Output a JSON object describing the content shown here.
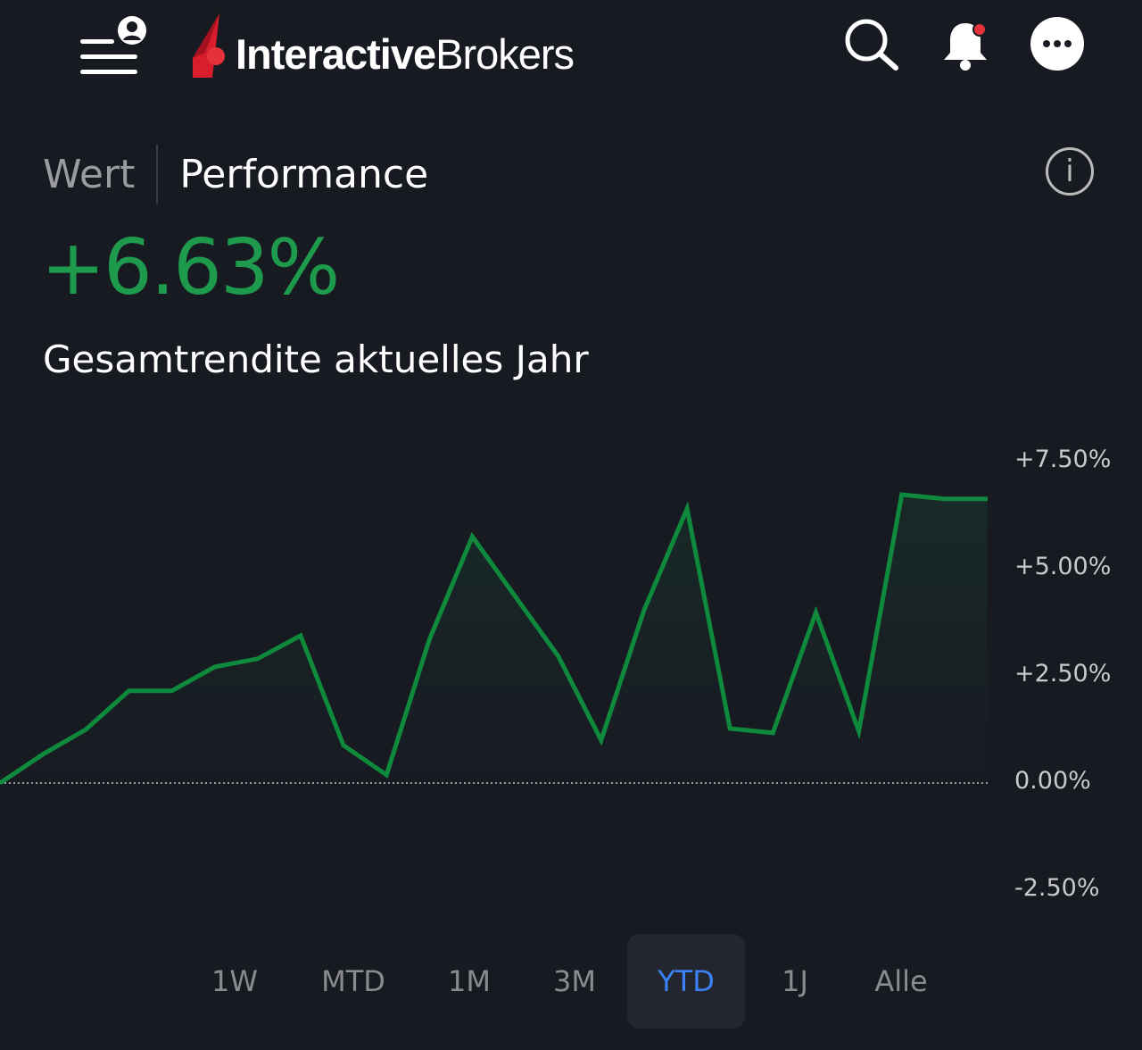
{
  "header": {
    "logo_bold": "Interactive",
    "logo_regular": "Brokers",
    "icons": [
      "menu-icon",
      "user-icon",
      "search-icon",
      "bell-icon",
      "more-icon"
    ],
    "notification_dot_color": "#e5323a"
  },
  "tabs": {
    "value_label": "Wert",
    "performance_label": "Performance"
  },
  "summary": {
    "return_value": "+6.63%",
    "return_label": "Gesamtrendite aktuelles Jahr"
  },
  "colors": {
    "positive": "#1e9a4c",
    "line": "#0f8a3c",
    "accent": "#3b82f6"
  },
  "chart_data": {
    "type": "line",
    "series": [
      {
        "name": "Performance YTD",
        "values": [
          0,
          0.67,
          1.25,
          2.15,
          2.15,
          2.71,
          2.9,
          3.44,
          0.88,
          0.19,
          3.35,
          5.75,
          4.35,
          2.96,
          1.0,
          4.04,
          6.4,
          1.27,
          1.17,
          3.98,
          1.21,
          6.73,
          6.63,
          6.63
        ]
      }
    ],
    "ylim": [
      -2.5,
      7.5
    ],
    "y_ticks": [
      "+7.50%",
      "+5.00%",
      "+2.50%",
      "0.00%",
      "-2.50%"
    ],
    "y_tick_values": [
      7.5,
      5,
      2.5,
      0,
      -2.5
    ],
    "baseline": 0,
    "axis_position": "right"
  },
  "periods": [
    {
      "label": "1W",
      "active": false
    },
    {
      "label": "MTD",
      "active": false
    },
    {
      "label": "1M",
      "active": false
    },
    {
      "label": "3M",
      "active": false
    },
    {
      "label": "YTD",
      "active": true
    },
    {
      "label": "1J",
      "active": false
    },
    {
      "label": "Alle",
      "active": false
    }
  ]
}
